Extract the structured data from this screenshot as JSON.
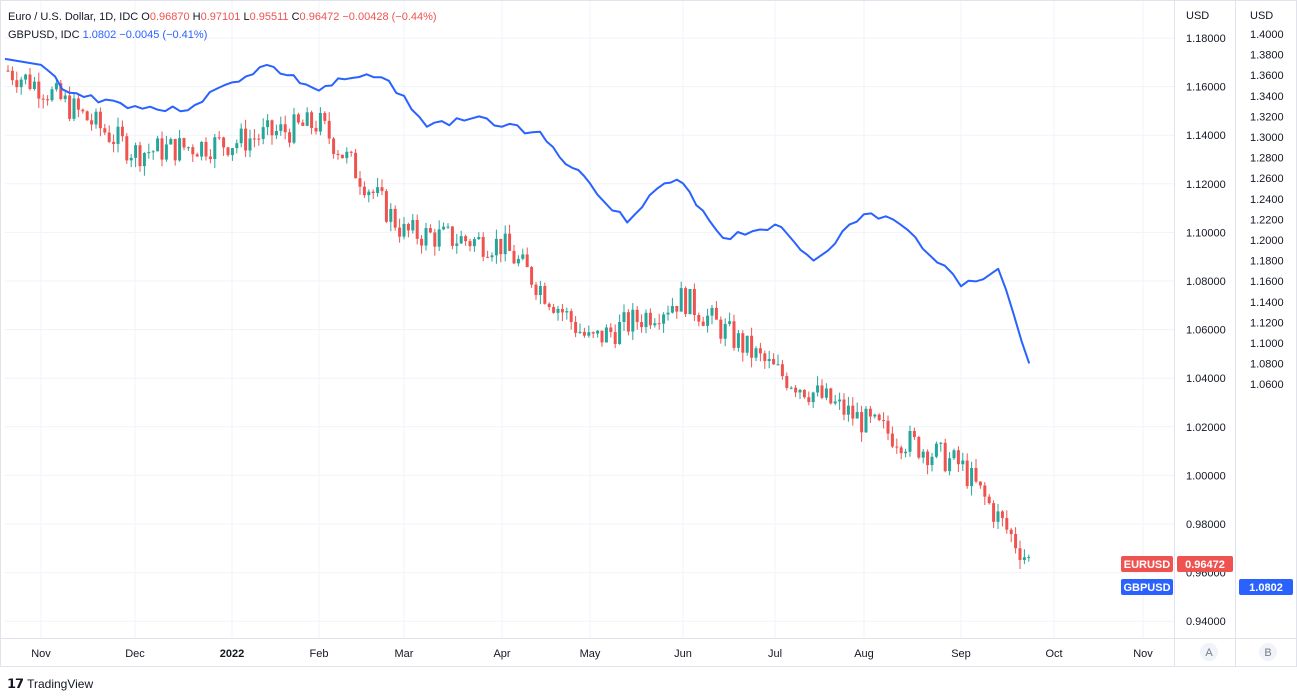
{
  "legend": {
    "primary": {
      "symbol": "Euro / U.S. Dollar, 1D, IDC",
      "o_label": "O",
      "o": "0.96870",
      "h_label": "H",
      "h": "0.97101",
      "l_label": "L",
      "l": "0.95511",
      "c_label": "C",
      "c": "0.96472",
      "change": "−0.00428 (−0.44%)"
    },
    "secondary": {
      "symbol": "GBPUSD, IDC",
      "value": "1.0802",
      "change": "−0.0045 (−0.41%)"
    }
  },
  "colors": {
    "up": "#26a69a",
    "down": "#ef5350",
    "compare": "#2962ff",
    "grid": "#f0f3fa",
    "border": "#e0e3eb",
    "text": "#131722"
  },
  "footer": {
    "brand": "TradingView"
  },
  "chart_data": {
    "type": "line",
    "title": "Euro / U.S. Dollar, 1D, IDC",
    "x_axis": {
      "labels": [
        "Nov",
        "Dec",
        "2022",
        "Feb",
        "Mar",
        "Apr",
        "May",
        "Jun",
        "Jul",
        "Aug",
        "Sep",
        "Oct",
        "Nov"
      ]
    },
    "left_scale": {
      "currency": "USD",
      "badge": "A",
      "range": [
        0.93,
        1.19
      ],
      "ticks": [
        "1.18000",
        "1.16000",
        "1.14000",
        "1.12000",
        "1.10000",
        "1.08000",
        "1.06000",
        "1.04000",
        "1.02000",
        "1.00000",
        "0.98000",
        "0.96000",
        "0.94000"
      ]
    },
    "right_scale": {
      "currency": "USD",
      "badge": "B",
      "range": [
        1.03,
        1.41
      ],
      "ticks": [
        "1.4000",
        "1.3800",
        "1.3600",
        "1.3400",
        "1.3200",
        "1.3000",
        "1.2800",
        "1.2600",
        "1.2400",
        "1.2200",
        "1.2000",
        "1.1800",
        "1.1600",
        "1.1400",
        "1.1200",
        "1.1000",
        "1.0800",
        "1.0600"
      ]
    },
    "series": [
      {
        "name": "EURUSD",
        "style": "candles",
        "last": "0.96472",
        "month_closes": [
          {
            "x": "Nov",
            "y": 1.16
          },
          {
            "x": "Dec",
            "y": 1.133
          },
          {
            "x": "2022",
            "y": 1.137
          },
          {
            "x": "Feb",
            "y": 1.145
          },
          {
            "x": "Mar",
            "y": 1.1
          },
          {
            "x": "Apr",
            "y": 1.095
          },
          {
            "x": "May",
            "y": 1.055
          },
          {
            "x": "Jun",
            "y": 1.073
          },
          {
            "x": "Jul",
            "y": 1.043
          },
          {
            "x": "Aug",
            "y": 1.022
          },
          {
            "x": "Sep",
            "y": 1.004
          },
          {
            "x": "Sep 23",
            "y": 0.9647
          }
        ]
      },
      {
        "name": "GBPUSD",
        "style": "line",
        "last": "1.0802",
        "points": [
          {
            "x": "Nov",
            "y": 1.37
          },
          {
            "x": "Nov 10",
            "y": 1.343
          },
          {
            "x": "Dec",
            "y": 1.33
          },
          {
            "x": "Dec 15",
            "y": 1.325
          },
          {
            "x": "2022",
            "y": 1.353
          },
          {
            "x": "Jan 13",
            "y": 1.37
          },
          {
            "x": "Jan 20",
            "y": 1.36
          },
          {
            "x": "Feb",
            "y": 1.345
          },
          {
            "x": "Feb 10",
            "y": 1.356
          },
          {
            "x": "Feb 23",
            "y": 1.358
          },
          {
            "x": "Mar",
            "y": 1.34
          },
          {
            "x": "Mar 8",
            "y": 1.31
          },
          {
            "x": "Mar 24",
            "y": 1.32
          },
          {
            "x": "Apr",
            "y": 1.31
          },
          {
            "x": "Apr 14",
            "y": 1.305
          },
          {
            "x": "Apr 25",
            "y": 1.27
          },
          {
            "x": "May",
            "y": 1.255
          },
          {
            "x": "May 13",
            "y": 1.217
          },
          {
            "x": "May 25",
            "y": 1.255
          },
          {
            "x": "Jun",
            "y": 1.255
          },
          {
            "x": "Jun 14",
            "y": 1.202
          },
          {
            "x": "Jul",
            "y": 1.215
          },
          {
            "x": "Jul 14",
            "y": 1.18
          },
          {
            "x": "Aug",
            "y": 1.225
          },
          {
            "x": "Aug 10",
            "y": 1.22
          },
          {
            "x": "Aug 26",
            "y": 1.175
          },
          {
            "x": "Sep",
            "y": 1.155
          },
          {
            "x": "Sep 13",
            "y": 1.172
          },
          {
            "x": "Sep 23",
            "y": 1.0802
          }
        ]
      }
    ],
    "grid": true
  }
}
